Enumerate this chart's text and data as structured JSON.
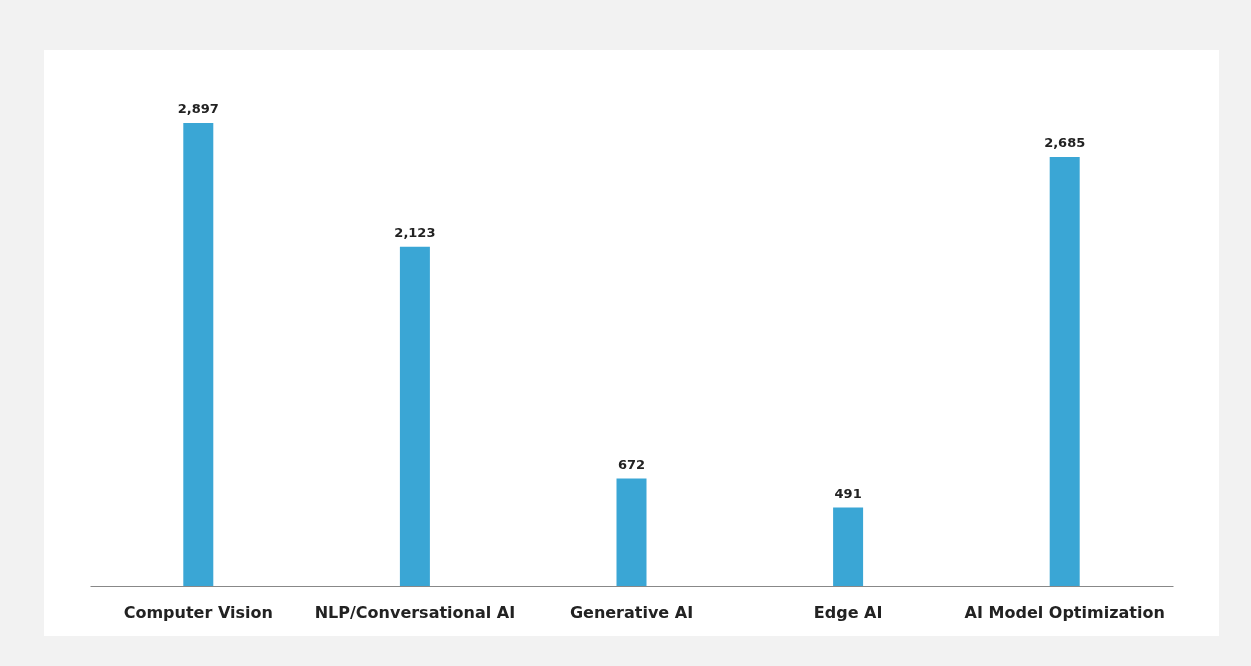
{
  "chart_data": {
    "type": "bar",
    "categories": [
      "Computer Vision",
      "NLP/Conversational AI",
      "Generative AI",
      "Edge AI",
      "AI Model Optimization"
    ],
    "values": [
      2897,
      2123,
      672,
      491,
      2685
    ],
    "value_labels": [
      "2,897",
      "2,123",
      "672",
      "491",
      "2,685"
    ],
    "color": "#3aa6d5"
  }
}
